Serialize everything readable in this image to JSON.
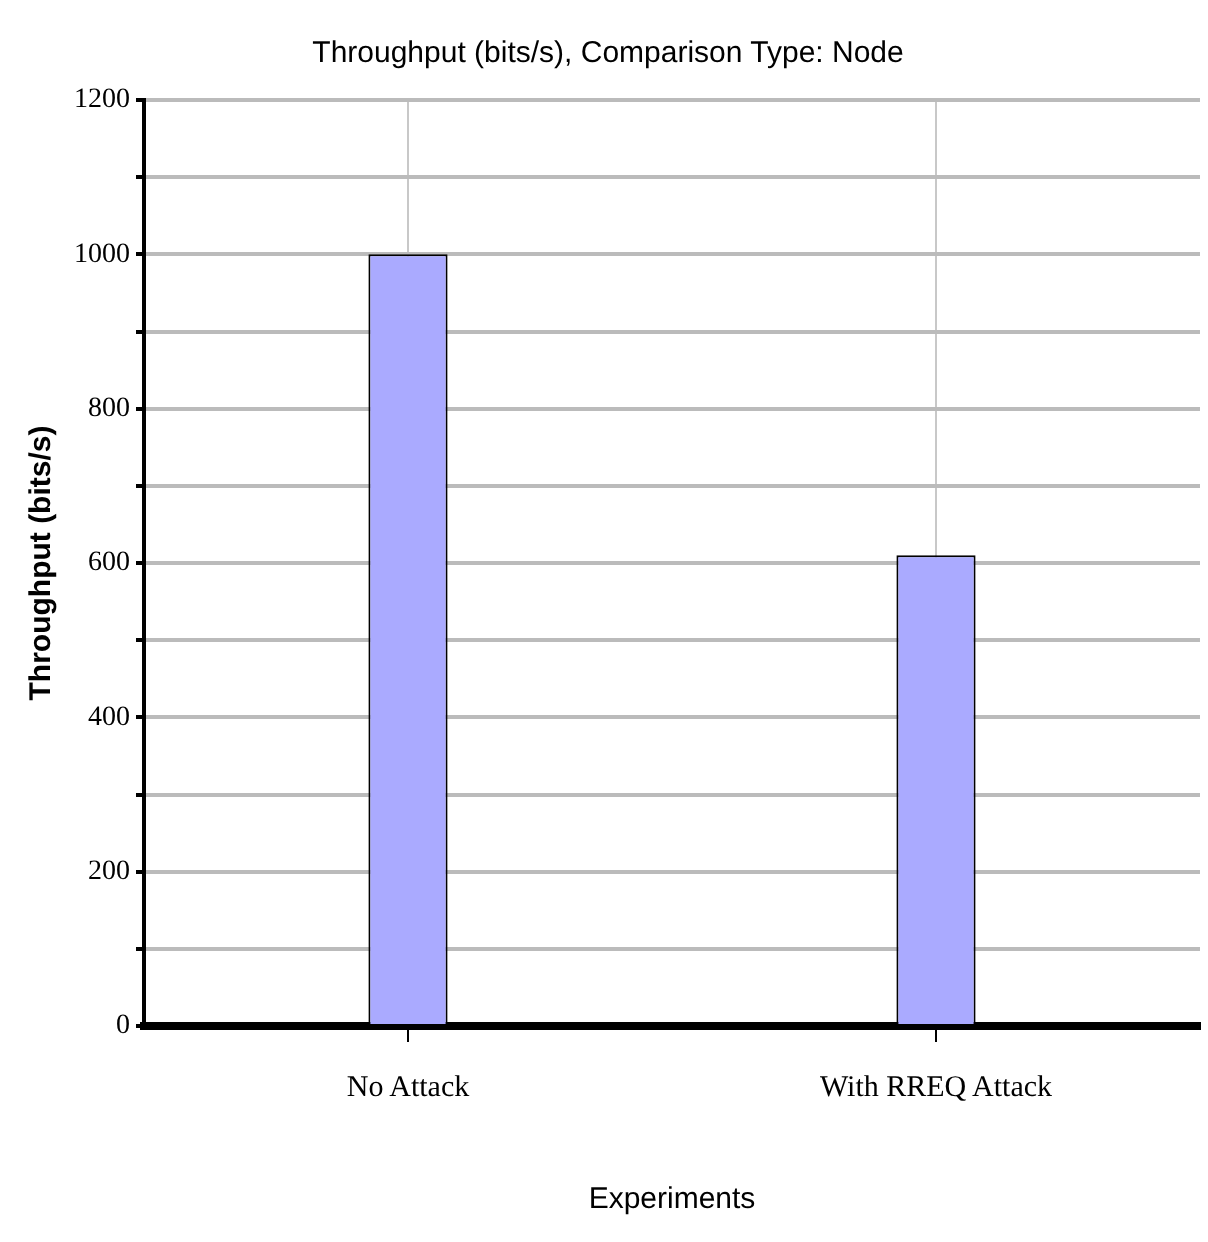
{
  "chart_data": {
    "type": "bar",
    "title": "Throughput (bits/s), Comparison Type: Node",
    "xlabel": "Experiments",
    "ylabel": "Throughput (bits/s)",
    "categories": [
      "No Attack",
      "With RREQ Attack"
    ],
    "values": [
      1000,
      610
    ],
    "color": "#aaaaff",
    "ylim": [
      0,
      1200
    ],
    "yticks": [
      0,
      {
        "value": 100,
        "label": null
      },
      200,
      {
        "value": 300,
        "label": null
      },
      400,
      {
        "value": 500,
        "label": null
      },
      600,
      {
        "value": 700,
        "label": null
      },
      800,
      {
        "value": 900,
        "label": null
      },
      1000,
      {
        "value": 1100,
        "label": null
      },
      1200
    ],
    "grid": true,
    "legend": false
  }
}
